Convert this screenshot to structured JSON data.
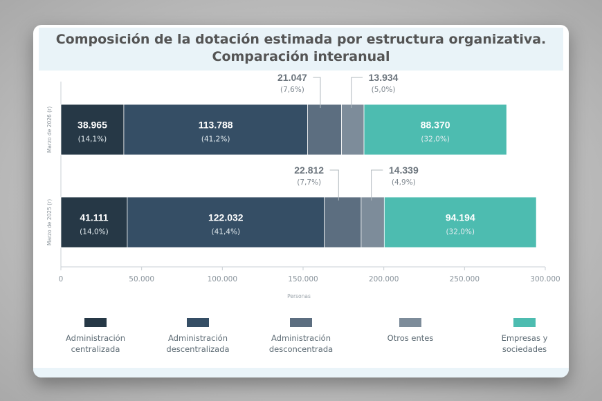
{
  "title_line1": "Composición de la dotación estimada por estructura organizativa.",
  "title_line2": "Comparación interanual",
  "colors": {
    "Administración centralizada": "#263846",
    "Administración descentralizada": "#354e65",
    "Administración desconcentrada": "#5c6e80",
    "Otros entes": "#7d8c9a",
    "Empresas y sociedades": "#4dbcb0"
  },
  "legend": [
    {
      "label": "Administración\ncentralizada",
      "series": "Administración centralizada"
    },
    {
      "label": "Administración\ndescentralizada",
      "series": "Administración descentralizada"
    },
    {
      "label": "Administración\ndesconcentrada",
      "series": "Administración desconcentrada"
    },
    {
      "label": "Otros entes",
      "series": "Otros entes"
    },
    {
      "label": "Empresas y\nsociedades",
      "series": "Empresas y sociedades"
    }
  ],
  "chart_data": {
    "type": "bar",
    "orientation": "horizontal",
    "stacked": true,
    "categories": [
      "Marzo de 2026 (r)",
      "Marzo de 2025 (r)"
    ],
    "series": [
      {
        "name": "Administración centralizada",
        "values": [
          38965,
          41111
        ],
        "value_labels": [
          "38.965",
          "41.111"
        ],
        "pct_labels": [
          "(14,1%)",
          "(14,0%)"
        ]
      },
      {
        "name": "Administración descentralizada",
        "values": [
          113788,
          122032
        ],
        "value_labels": [
          "113.788",
          "122.032"
        ],
        "pct_labels": [
          "(41,2%)",
          "(41,4%)"
        ]
      },
      {
        "name": "Administración desconcentrada",
        "values": [
          21047,
          22812
        ],
        "value_labels": [
          "21.047",
          "22.812"
        ],
        "pct_labels": [
          "(7,6%)",
          "(7,7%)"
        ]
      },
      {
        "name": "Otros entes",
        "values": [
          13934,
          14339
        ],
        "value_labels": [
          "13.934",
          "14.339"
        ],
        "pct_labels": [
          "(5,0%)",
          "(4,9%)"
        ]
      },
      {
        "name": "Empresas y sociedades",
        "values": [
          88370,
          94194
        ],
        "value_labels": [
          "88.370",
          "94.194"
        ],
        "pct_labels": [
          "(32,0%)",
          "(32,0%)"
        ]
      }
    ],
    "xlabel": "Personas",
    "xlim": [
      0,
      300000
    ],
    "xticks": [
      0,
      50000,
      100000,
      150000,
      200000,
      250000,
      300000
    ],
    "xtick_labels": [
      "0",
      "50.000",
      "100.000",
      "150.000",
      "200.000",
      "250.000",
      "300.000"
    ],
    "legend_position": "bottom",
    "grid": false
  }
}
